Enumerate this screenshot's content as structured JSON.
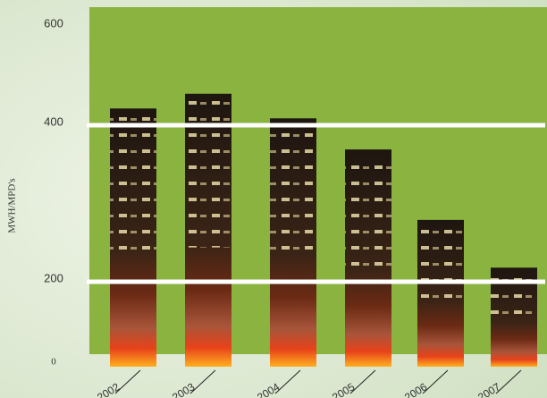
{
  "chart_data": {
    "type": "bar",
    "y_label": "MWH/MPD's",
    "categories": [
      "2002",
      "2003",
      "2004",
      "2005",
      "2006",
      "2007"
    ],
    "values": [
      434,
      464,
      414,
      369,
      279,
      218
    ],
    "color": "#3a2416",
    "ylim": [
      0,
      600
    ],
    "yticks": [
      0,
      200,
      400,
      600
    ],
    "grid": true
  }
}
